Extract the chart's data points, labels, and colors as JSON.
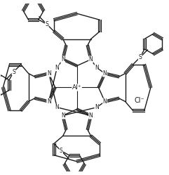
{
  "background_color": "#ffffff",
  "line_color": "#1a1a1a",
  "line_width": 1.0,
  "al_label": "Al⁺",
  "cl_label": "Cl⁻",
  "figsize": [
    2.41,
    2.49
  ],
  "dpi": 100,
  "xlim": [
    -3.0,
    3.6
  ],
  "ylim": [
    -3.3,
    3.3
  ]
}
